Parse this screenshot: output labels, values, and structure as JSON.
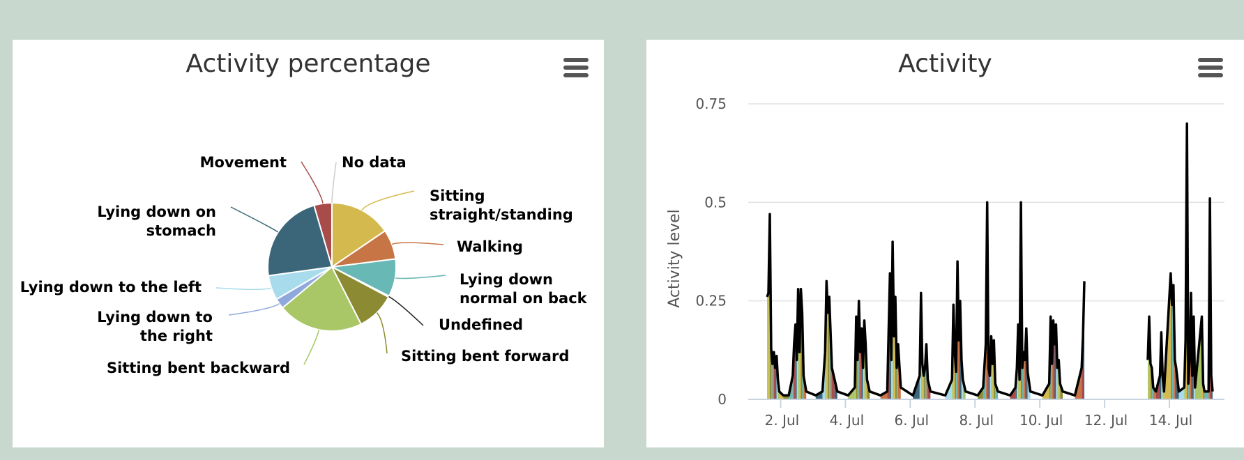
{
  "panels": {
    "pie": {
      "title": "Activity percentage"
    },
    "line": {
      "title": "Activity"
    }
  },
  "chart_data": [
    {
      "type": "pie",
      "title": "Activity percentage",
      "slices": [
        {
          "name": "Sitting straight/standing",
          "value": 15.5,
          "color": "#d4b94f"
        },
        {
          "name": "Walking",
          "value": 7.5,
          "color": "#c87545"
        },
        {
          "name": "Lying down normal on back",
          "value": 9.5,
          "color": "#68b8b5"
        },
        {
          "name": "Undefined",
          "value": 0.3,
          "color": "#222222"
        },
        {
          "name": "Sitting bent forward",
          "value": 9.7,
          "color": "#8c8b33"
        },
        {
          "name": "Sitting bent backward",
          "value": 21.5,
          "color": "#a9c766"
        },
        {
          "name": "Lying down to the right",
          "value": 2.6,
          "color": "#8fa9dc"
        },
        {
          "name": "Lying down to the left",
          "value": 6.2,
          "color": "#a8dcec"
        },
        {
          "name": "Lying down on stomach",
          "value": 22.7,
          "color": "#3b6578"
        },
        {
          "name": "Movement",
          "value": 4.5,
          "color": "#a84b4b"
        },
        {
          "name": "No data",
          "value": 0,
          "color": "#ffffff"
        }
      ]
    },
    {
      "type": "area",
      "title": "Activity",
      "ylabel": "Activity level",
      "ylim": [
        0,
        0.75
      ],
      "yticks": [
        0,
        0.25,
        0.5,
        0.75
      ],
      "ytick_labels": [
        "0",
        "0.25",
        "0.5",
        "0.75"
      ],
      "xlim": [
        "2023-07-01",
        "2023-07-15.7"
      ],
      "xticks": [
        "2023-07-02",
        "2023-07-04",
        "2023-07-06",
        "2023-07-08",
        "2023-07-10",
        "2023-07-12",
        "2023-07-14"
      ],
      "xtick_labels": [
        "2. Jul",
        "4. Jul",
        "6. Jul",
        "8. Jul",
        "10. Jul",
        "12. Jul",
        "14. Jul"
      ],
      "series": [
        {
          "color": "#000000",
          "points": [
            [
              "2023-07-01T14:00",
              0.26
            ],
            [
              "2023-07-01T15:00",
              0.27
            ],
            [
              "2023-07-01T16:00",
              0.47
            ],
            [
              "2023-07-01T17:00",
              0.13
            ],
            [
              "2023-07-01T18:00",
              0.09
            ],
            [
              "2023-07-01T19:00",
              0.12
            ],
            [
              "2023-07-01T20:00",
              0.08
            ],
            [
              "2023-07-01T21:00",
              0.11
            ],
            [
              "2023-07-01T22:00",
              0.05
            ],
            [
              "2023-07-01T23:00",
              0.02
            ],
            [
              "2023-07-02T02:00",
              0.01
            ],
            [
              "2023-07-02T06:00",
              0.01
            ],
            [
              "2023-07-02T09:00",
              0.06
            ],
            [
              "2023-07-02T10:00",
              0.14
            ],
            [
              "2023-07-02T11:00",
              0.19
            ],
            [
              "2023-07-02T12:00",
              0.1
            ],
            [
              "2023-07-02T13:00",
              0.28
            ],
            [
              "2023-07-02T14:00",
              0.12
            ],
            [
              "2023-07-02T15:00",
              0.28
            ],
            [
              "2023-07-02T16:00",
              0.22
            ],
            [
              "2023-07-02T17:00",
              0.06
            ],
            [
              "2023-07-02T19:00",
              0.02
            ],
            [
              "2023-07-03T02:00",
              0.01
            ],
            [
              "2023-07-03T07:00",
              0.02
            ],
            [
              "2023-07-03T09:00",
              0.12
            ],
            [
              "2023-07-03T10:00",
              0.3
            ],
            [
              "2023-07-03T11:00",
              0.22
            ],
            [
              "2023-07-03T12:00",
              0.26
            ],
            [
              "2023-07-03T13:00",
              0.17
            ],
            [
              "2023-07-03T14:00",
              0.08
            ],
            [
              "2023-07-03T16:00",
              0.05
            ],
            [
              "2023-07-03T18:00",
              0.02
            ],
            [
              "2023-07-04T02:00",
              0.01
            ],
            [
              "2023-07-04T07:00",
              0.03
            ],
            [
              "2023-07-04T08:00",
              0.21
            ],
            [
              "2023-07-04T09:00",
              0.1
            ],
            [
              "2023-07-04T10:00",
              0.25
            ],
            [
              "2023-07-04T11:00",
              0.12
            ],
            [
              "2023-07-04T12:00",
              0.18
            ],
            [
              "2023-07-04T13:00",
              0.08
            ],
            [
              "2023-07-04T14:00",
              0.2
            ],
            [
              "2023-07-04T15:00",
              0.14
            ],
            [
              "2023-07-04T16:00",
              0.05
            ],
            [
              "2023-07-04T18:00",
              0.02
            ],
            [
              "2023-07-05T02:00",
              0.01
            ],
            [
              "2023-07-05T07:00",
              0.02
            ],
            [
              "2023-07-05T09:00",
              0.32
            ],
            [
              "2023-07-05T10:00",
              0.1
            ],
            [
              "2023-07-05T11:00",
              0.4
            ],
            [
              "2023-07-05T12:00",
              0.16
            ],
            [
              "2023-07-05T13:00",
              0.26
            ],
            [
              "2023-07-05T14:00",
              0.08
            ],
            [
              "2023-07-05T15:00",
              0.14
            ],
            [
              "2023-07-05T17:00",
              0.03
            ],
            [
              "2023-07-06T02:00",
              0.01
            ],
            [
              "2023-07-06T07:00",
              0.06
            ],
            [
              "2023-07-06T08:00",
              0.27
            ],
            [
              "2023-07-06T09:00",
              0.09
            ],
            [
              "2023-07-06T10:00",
              0.06
            ],
            [
              "2023-07-06T11:00",
              0.08
            ],
            [
              "2023-07-06T12:00",
              0.14
            ],
            [
              "2023-07-06T13:00",
              0.05
            ],
            [
              "2023-07-06T15:00",
              0.02
            ],
            [
              "2023-07-07T02:00",
              0.01
            ],
            [
              "2023-07-07T07:00",
              0.05
            ],
            [
              "2023-07-07T08:00",
              0.24
            ],
            [
              "2023-07-07T09:00",
              0.12
            ],
            [
              "2023-07-07T10:00",
              0.07
            ],
            [
              "2023-07-07T11:00",
              0.35
            ],
            [
              "2023-07-07T12:00",
              0.15
            ],
            [
              "2023-07-07T13:00",
              0.25
            ],
            [
              "2023-07-07T14:00",
              0.1
            ],
            [
              "2023-07-07T15:00",
              0.05
            ],
            [
              "2023-07-07T17:00",
              0.02
            ],
            [
              "2023-07-08T02:00",
              0.01
            ],
            [
              "2023-07-08T06:00",
              0.03
            ],
            [
              "2023-07-08T08:00",
              0.14
            ],
            [
              "2023-07-08T09:00",
              0.5
            ],
            [
              "2023-07-08T10:00",
              0.08
            ],
            [
              "2023-07-08T11:00",
              0.06
            ],
            [
              "2023-07-08T12:00",
              0.16
            ],
            [
              "2023-07-08T13:00",
              0.09
            ],
            [
              "2023-07-08T14:00",
              0.15
            ],
            [
              "2023-07-08T15:00",
              0.04
            ],
            [
              "2023-07-08T17:00",
              0.02
            ],
            [
              "2023-07-09T02:00",
              0.01
            ],
            [
              "2023-07-09T06:00",
              0.03
            ],
            [
              "2023-07-09T07:00",
              0.08
            ],
            [
              "2023-07-09T08:00",
              0.19
            ],
            [
              "2023-07-09T09:00",
              0.05
            ],
            [
              "2023-07-09T10:00",
              0.5
            ],
            [
              "2023-07-09T11:00",
              0.08
            ],
            [
              "2023-07-09T12:00",
              0.12
            ],
            [
              "2023-07-09T13:00",
              0.1
            ],
            [
              "2023-07-09T14:00",
              0.18
            ],
            [
              "2023-07-09T15:00",
              0.07
            ],
            [
              "2023-07-09T17:00",
              0.02
            ],
            [
              "2023-07-10T02:00",
              0.01
            ],
            [
              "2023-07-10T07:00",
              0.04
            ],
            [
              "2023-07-10T08:00",
              0.21
            ],
            [
              "2023-07-10T09:00",
              0.09
            ],
            [
              "2023-07-10T10:00",
              0.2
            ],
            [
              "2023-07-10T11:00",
              0.14
            ],
            [
              "2023-07-10T12:00",
              0.19
            ],
            [
              "2023-07-10T13:00",
              0.08
            ],
            [
              "2023-07-10T14:00",
              0.1
            ],
            [
              "2023-07-10T15:00",
              0.04
            ],
            [
              "2023-07-10T17:00",
              0.02
            ],
            [
              "2023-07-11T02:00",
              0.01
            ],
            [
              "2023-07-11T07:00",
              0.08
            ],
            [
              "2023-07-11T08:00",
              0.16
            ],
            [
              "2023-07-11T09:00",
              0.3
            ],
            [
              "2023-07-13T08:00",
              0.1
            ],
            [
              "2023-07-13T09:00",
              0.21
            ],
            [
              "2023-07-13T10:00",
              0.09
            ],
            [
              "2023-07-13T11:00",
              0.08
            ],
            [
              "2023-07-13T12:00",
              0.03
            ],
            [
              "2023-07-13T14:00",
              0.02
            ],
            [
              "2023-07-13T17:00",
              0.06
            ],
            [
              "2023-07-13T18:00",
              0.17
            ],
            [
              "2023-07-13T19:00",
              0.06
            ],
            [
              "2023-07-13T20:00",
              0.02
            ],
            [
              "2023-07-14T01:00",
              0.32
            ],
            [
              "2023-07-14T02:00",
              0.24
            ],
            [
              "2023-07-14T03:00",
              0.29
            ],
            [
              "2023-07-14T04:00",
              0.1
            ],
            [
              "2023-07-14T05:00",
              0.08
            ],
            [
              "2023-07-14T07:00",
              0.02
            ],
            [
              "2023-07-14T11:00",
              0.03
            ],
            [
              "2023-07-14T12:00",
              0.15
            ],
            [
              "2023-07-14T13:00",
              0.7
            ],
            [
              "2023-07-14T14:00",
              0.04
            ],
            [
              "2023-07-14T15:00",
              0.1
            ],
            [
              "2023-07-14T16:00",
              0.27
            ],
            [
              "2023-07-14T17:00",
              0.06
            ],
            [
              "2023-07-14T18:00",
              0.21
            ],
            [
              "2023-07-14T19:00",
              0.03
            ],
            [
              "2023-07-15T00:00",
              0.21
            ],
            [
              "2023-07-15T01:00",
              0.04
            ],
            [
              "2023-07-15T02:00",
              0.02
            ],
            [
              "2023-07-15T05:00",
              0.02
            ],
            [
              "2023-07-15T06:00",
              0.51
            ],
            [
              "2023-07-15T07:00",
              0.06
            ],
            [
              "2023-07-15T08:00",
              0.02
            ]
          ]
        }
      ]
    }
  ]
}
